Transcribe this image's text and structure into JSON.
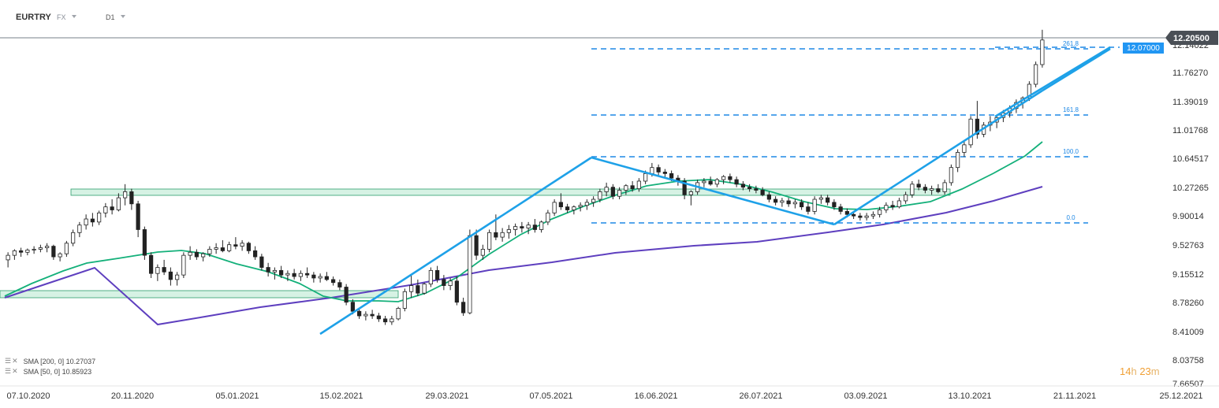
{
  "toolbar": {
    "symbol": "EURTRY",
    "market": "FX",
    "timeframe": "D1"
  },
  "price_axis": {
    "labels": [
      "12.14022",
      "11.76270",
      "11.39019",
      "11.01768",
      "10.64517",
      "10.27265",
      "9.90014",
      "9.52763",
      "9.15512",
      "8.78260",
      "8.41009",
      "8.03758",
      "7.66507"
    ],
    "current_price": "12.20500",
    "level_tag": "12.07000"
  },
  "time_axis": {
    "labels": [
      "07.10.2020",
      "20.11.2020",
      "05.01.2021",
      "15.02.2021",
      "29.03.2021",
      "07.05.2021",
      "16.06.2021",
      "26.07.2021",
      "03.09.2021",
      "13.10.2021",
      "21.11.2021",
      "25.12.2021"
    ]
  },
  "fib_labels": [
    "261.8",
    "161.8",
    "100.0",
    "0.0"
  ],
  "indicators": [
    {
      "label": "SMA [200, 0] 10.27037",
      "color": "#5e3fbf"
    },
    {
      "label": "SMA [50, 0] 10.85923",
      "color": "#14b07a"
    }
  ],
  "timer": {
    "hours": "14",
    "h_unit": "h",
    "minutes": "23",
    "m_unit": "m"
  },
  "colors": {
    "up_candle": "#ffffff",
    "down_candle": "#222222",
    "trendline": "#1ea1e8",
    "fib": "#1e88e5",
    "zone_fill": "#c8eedb",
    "zone_stroke": "#2e9e6c",
    "sma200": "#5e3fbf",
    "sma50": "#14b07a",
    "price_tag_bg": "#4a4f56",
    "level_tag_bg": "#2196f3"
  },
  "chart_data": {
    "type": "candlestick",
    "series": [
      {
        "name": "EURTRY",
        "kind": "candle",
        "ohlc_approx": [
          [
            9.3,
            9.4,
            9.2,
            9.36
          ],
          [
            9.36,
            9.44,
            9.3,
            9.42
          ],
          [
            9.42,
            9.46,
            9.34,
            9.4
          ],
          [
            9.4,
            9.45,
            9.36,
            9.43
          ],
          [
            9.43,
            9.48,
            9.38,
            9.44
          ],
          [
            9.44,
            9.5,
            9.4,
            9.46
          ],
          [
            9.46,
            9.52,
            9.4,
            9.48
          ],
          [
            9.48,
            9.5,
            9.3,
            9.34
          ],
          [
            9.34,
            9.4,
            9.28,
            9.38
          ],
          [
            9.38,
            9.55,
            9.34,
            9.52
          ],
          [
            9.52,
            9.7,
            9.48,
            9.66
          ],
          [
            9.66,
            9.8,
            9.6,
            9.76
          ],
          [
            9.76,
            9.9,
            9.7,
            9.84
          ],
          [
            9.84,
            9.92,
            9.74,
            9.8
          ],
          [
            9.8,
            9.95,
            9.76,
            9.92
          ],
          [
            9.92,
            10.05,
            9.86,
            10.0
          ],
          [
            10.0,
            10.1,
            9.9,
            9.96
          ],
          [
            9.96,
            10.18,
            9.94,
            10.12
          ],
          [
            10.12,
            10.3,
            10.02,
            10.2
          ],
          [
            10.2,
            10.24,
            9.96,
            10.04
          ],
          [
            10.04,
            10.08,
            9.6,
            9.7
          ],
          [
            9.7,
            9.74,
            9.3,
            9.36
          ],
          [
            9.36,
            9.4,
            9.06,
            9.12
          ],
          [
            9.12,
            9.24,
            9.02,
            9.2
          ],
          [
            9.2,
            9.3,
            9.1,
            9.14
          ],
          [
            9.14,
            9.2,
            8.96,
            9.04
          ],
          [
            9.04,
            9.14,
            8.96,
            9.1
          ],
          [
            9.1,
            9.4,
            9.06,
            9.36
          ],
          [
            9.36,
            9.48,
            9.3,
            9.4
          ],
          [
            9.4,
            9.44,
            9.3,
            9.34
          ],
          [
            9.34,
            9.4,
            9.28,
            9.38
          ],
          [
            9.38,
            9.48,
            9.34,
            9.44
          ],
          [
            9.44,
            9.52,
            9.38,
            9.46
          ],
          [
            9.46,
            9.56,
            9.4,
            9.42
          ],
          [
            9.42,
            9.54,
            9.4,
            9.5
          ],
          [
            9.5,
            9.6,
            9.44,
            9.48
          ],
          [
            9.48,
            9.56,
            9.42,
            9.52
          ],
          [
            9.52,
            9.54,
            9.38,
            9.42
          ],
          [
            9.42,
            9.48,
            9.3,
            9.34
          ],
          [
            9.34,
            9.38,
            9.16,
            9.2
          ],
          [
            9.2,
            9.26,
            9.08,
            9.14
          ],
          [
            9.14,
            9.2,
            9.04,
            9.16
          ],
          [
            9.16,
            9.22,
            9.06,
            9.1
          ],
          [
            9.1,
            9.16,
            9.02,
            9.12
          ],
          [
            9.12,
            9.18,
            9.04,
            9.08
          ],
          [
            9.08,
            9.16,
            9.02,
            9.12
          ],
          [
            9.12,
            9.2,
            9.06,
            9.1
          ],
          [
            9.1,
            9.14,
            9.0,
            9.06
          ],
          [
            9.06,
            9.12,
            9.0,
            9.08
          ],
          [
            9.08,
            9.14,
            9.02,
            9.04
          ],
          [
            9.04,
            9.08,
            8.96,
            9.0
          ],
          [
            9.0,
            9.04,
            8.9,
            8.94
          ],
          [
            8.94,
            8.98,
            8.7,
            8.74
          ],
          [
            8.74,
            8.78,
            8.58,
            8.62
          ],
          [
            8.62,
            8.66,
            8.52,
            8.56
          ],
          [
            8.56,
            8.62,
            8.5,
            8.58
          ],
          [
            8.58,
            8.64,
            8.52,
            8.56
          ],
          [
            8.56,
            8.6,
            8.48,
            8.52
          ],
          [
            8.52,
            8.56,
            8.44,
            8.48
          ],
          [
            8.48,
            8.56,
            8.44,
            8.52
          ],
          [
            8.52,
            8.68,
            8.5,
            8.66
          ],
          [
            8.66,
            8.92,
            8.62,
            8.88
          ],
          [
            8.88,
            9.1,
            8.8,
            8.96
          ],
          [
            8.96,
            9.04,
            8.82,
            8.86
          ],
          [
            8.86,
            9.0,
            8.84,
            8.98
          ],
          [
            8.98,
            9.2,
            8.94,
            9.16
          ],
          [
            9.16,
            9.22,
            9.0,
            9.04
          ],
          [
            9.04,
            9.1,
            8.9,
            8.96
          ],
          [
            8.96,
            9.06,
            8.9,
            9.02
          ],
          [
            9.02,
            9.08,
            8.7,
            8.74
          ],
          [
            8.74,
            8.8,
            8.56,
            8.6
          ],
          [
            8.6,
            9.7,
            8.58,
            9.62
          ],
          [
            9.62,
            9.7,
            9.3,
            9.36
          ],
          [
            9.36,
            9.5,
            9.3,
            9.44
          ],
          [
            9.44,
            9.7,
            9.4,
            9.66
          ],
          [
            9.66,
            9.9,
            9.56,
            9.6
          ],
          [
            9.6,
            9.72,
            9.54,
            9.66
          ],
          [
            9.66,
            9.76,
            9.58,
            9.7
          ],
          [
            9.7,
            9.78,
            9.62,
            9.74
          ],
          [
            9.74,
            9.8,
            9.66,
            9.72
          ],
          [
            9.72,
            9.8,
            9.64,
            9.76
          ],
          [
            9.76,
            9.84,
            9.66,
            9.7
          ],
          [
            9.7,
            9.82,
            9.66,
            9.8
          ],
          [
            9.8,
            9.96,
            9.76,
            9.92
          ],
          [
            9.92,
            10.1,
            9.88,
            10.06
          ],
          [
            10.06,
            10.18,
            9.96,
            10.0
          ],
          [
            10.0,
            10.04,
            9.92,
            9.96
          ],
          [
            9.96,
            10.02,
            9.9,
            10.0
          ],
          [
            10.0,
            10.06,
            9.94,
            10.02
          ],
          [
            10.02,
            10.1,
            9.96,
            10.06
          ],
          [
            10.06,
            10.14,
            10.0,
            10.1
          ],
          [
            10.1,
            10.24,
            10.06,
            10.2
          ],
          [
            10.2,
            10.32,
            10.14,
            10.26
          ],
          [
            10.26,
            10.3,
            10.1,
            10.14
          ],
          [
            10.14,
            10.26,
            10.1,
            10.22
          ],
          [
            10.22,
            10.3,
            10.16,
            10.28
          ],
          [
            10.28,
            10.34,
            10.2,
            10.24
          ],
          [
            10.24,
            10.38,
            10.2,
            10.34
          ],
          [
            10.34,
            10.48,
            10.3,
            10.44
          ],
          [
            10.44,
            10.58,
            10.4,
            10.52
          ],
          [
            10.52,
            10.56,
            10.4,
            10.46
          ],
          [
            10.46,
            10.5,
            10.38,
            10.44
          ],
          [
            10.44,
            10.48,
            10.34,
            10.38
          ],
          [
            10.38,
            10.42,
            10.28,
            10.34
          ],
          [
            10.34,
            10.38,
            10.1,
            10.16
          ],
          [
            10.16,
            10.22,
            10.02,
            10.2
          ],
          [
            10.2,
            10.36,
            10.16,
            10.32
          ],
          [
            10.32,
            10.38,
            10.26,
            10.34
          ],
          [
            10.34,
            10.4,
            10.28,
            10.3
          ],
          [
            10.3,
            10.38,
            10.26,
            10.36
          ],
          [
            10.36,
            10.42,
            10.3,
            10.4
          ],
          [
            10.4,
            10.44,
            10.32,
            10.36
          ],
          [
            10.36,
            10.4,
            10.26,
            10.3
          ],
          [
            10.3,
            10.34,
            10.22,
            10.26
          ],
          [
            10.26,
            10.3,
            10.2,
            10.24
          ],
          [
            10.24,
            10.28,
            10.18,
            10.22
          ],
          [
            10.22,
            10.26,
            10.14,
            10.16
          ],
          [
            10.16,
            10.2,
            10.06,
            10.1
          ],
          [
            10.1,
            10.14,
            10.02,
            10.06
          ],
          [
            10.06,
            10.12,
            10.0,
            10.08
          ],
          [
            10.08,
            10.12,
            10.0,
            10.04
          ],
          [
            10.04,
            10.1,
            9.98,
            10.06
          ],
          [
            10.06,
            10.1,
            9.96,
            10.0
          ],
          [
            10.0,
            10.06,
            9.9,
            9.94
          ],
          [
            9.94,
            10.14,
            9.9,
            10.1
          ],
          [
            10.1,
            10.16,
            10.04,
            10.12
          ],
          [
            10.12,
            10.16,
            10.02,
            10.06
          ],
          [
            10.06,
            10.1,
            9.96,
            10.0
          ],
          [
            10.0,
            10.04,
            9.9,
            9.94
          ],
          [
            9.94,
            9.98,
            9.86,
            9.9
          ],
          [
            9.9,
            9.94,
            9.84,
            9.88
          ],
          [
            9.88,
            9.92,
            9.82,
            9.86
          ],
          [
            9.86,
            9.92,
            9.82,
            9.88
          ],
          [
            9.88,
            9.94,
            9.84,
            9.9
          ],
          [
            9.9,
            10.0,
            9.86,
            9.96
          ],
          [
            9.96,
            10.06,
            9.92,
            10.02
          ],
          [
            10.02,
            10.08,
            9.96,
            10.0
          ],
          [
            10.0,
            10.12,
            9.98,
            10.08
          ],
          [
            10.08,
            10.2,
            10.04,
            10.16
          ],
          [
            10.16,
            10.34,
            10.12,
            10.3
          ],
          [
            10.3,
            10.36,
            10.22,
            10.26
          ],
          [
            10.26,
            10.3,
            10.18,
            10.22
          ],
          [
            10.22,
            10.28,
            10.16,
            10.24
          ],
          [
            10.24,
            10.3,
            10.18,
            10.2
          ],
          [
            10.2,
            10.36,
            10.16,
            10.32
          ],
          [
            10.32,
            10.56,
            10.28,
            10.52
          ],
          [
            10.52,
            10.76,
            10.46,
            10.72
          ],
          [
            10.72,
            10.86,
            10.66,
            10.82
          ],
          [
            10.82,
            11.2,
            10.78,
            11.16
          ],
          [
            11.16,
            11.4,
            10.9,
            10.96
          ],
          [
            10.96,
            11.12,
            10.92,
            11.08
          ],
          [
            11.08,
            11.2,
            11.0,
            11.12
          ],
          [
            11.12,
            11.22,
            11.04,
            11.18
          ],
          [
            11.18,
            11.28,
            11.12,
            11.24
          ],
          [
            11.24,
            11.34,
            11.18,
            11.3
          ],
          [
            11.3,
            11.42,
            11.24,
            11.38
          ],
          [
            11.38,
            11.46,
            11.3,
            11.44
          ],
          [
            11.44,
            11.66,
            11.4,
            11.62
          ],
          [
            11.62,
            11.92,
            11.58,
            11.88
          ],
          [
            11.88,
            12.34,
            11.84,
            12.205
          ]
        ]
      },
      {
        "name": "SMA [200, 0]",
        "value_last": 10.27037
      },
      {
        "name": "SMA [50, 0]",
        "value_last": 10.85923
      }
    ],
    "fibonacci_levels": [
      {
        "label": "261.8",
        "value": 12.07
      },
      {
        "label": "161.8",
        "value": 11.24
      },
      {
        "label": "100.0",
        "value": 10.66
      },
      {
        "label": "0.0",
        "value": 9.83
      }
    ],
    "support_zones": [
      [
        10.18,
        10.24
      ],
      [
        8.84,
        8.94
      ]
    ],
    "ylim": [
      7.66507,
      12.3
    ],
    "x_start": "07.10.2020",
    "x_end": "25.12.2021",
    "grid": false
  }
}
